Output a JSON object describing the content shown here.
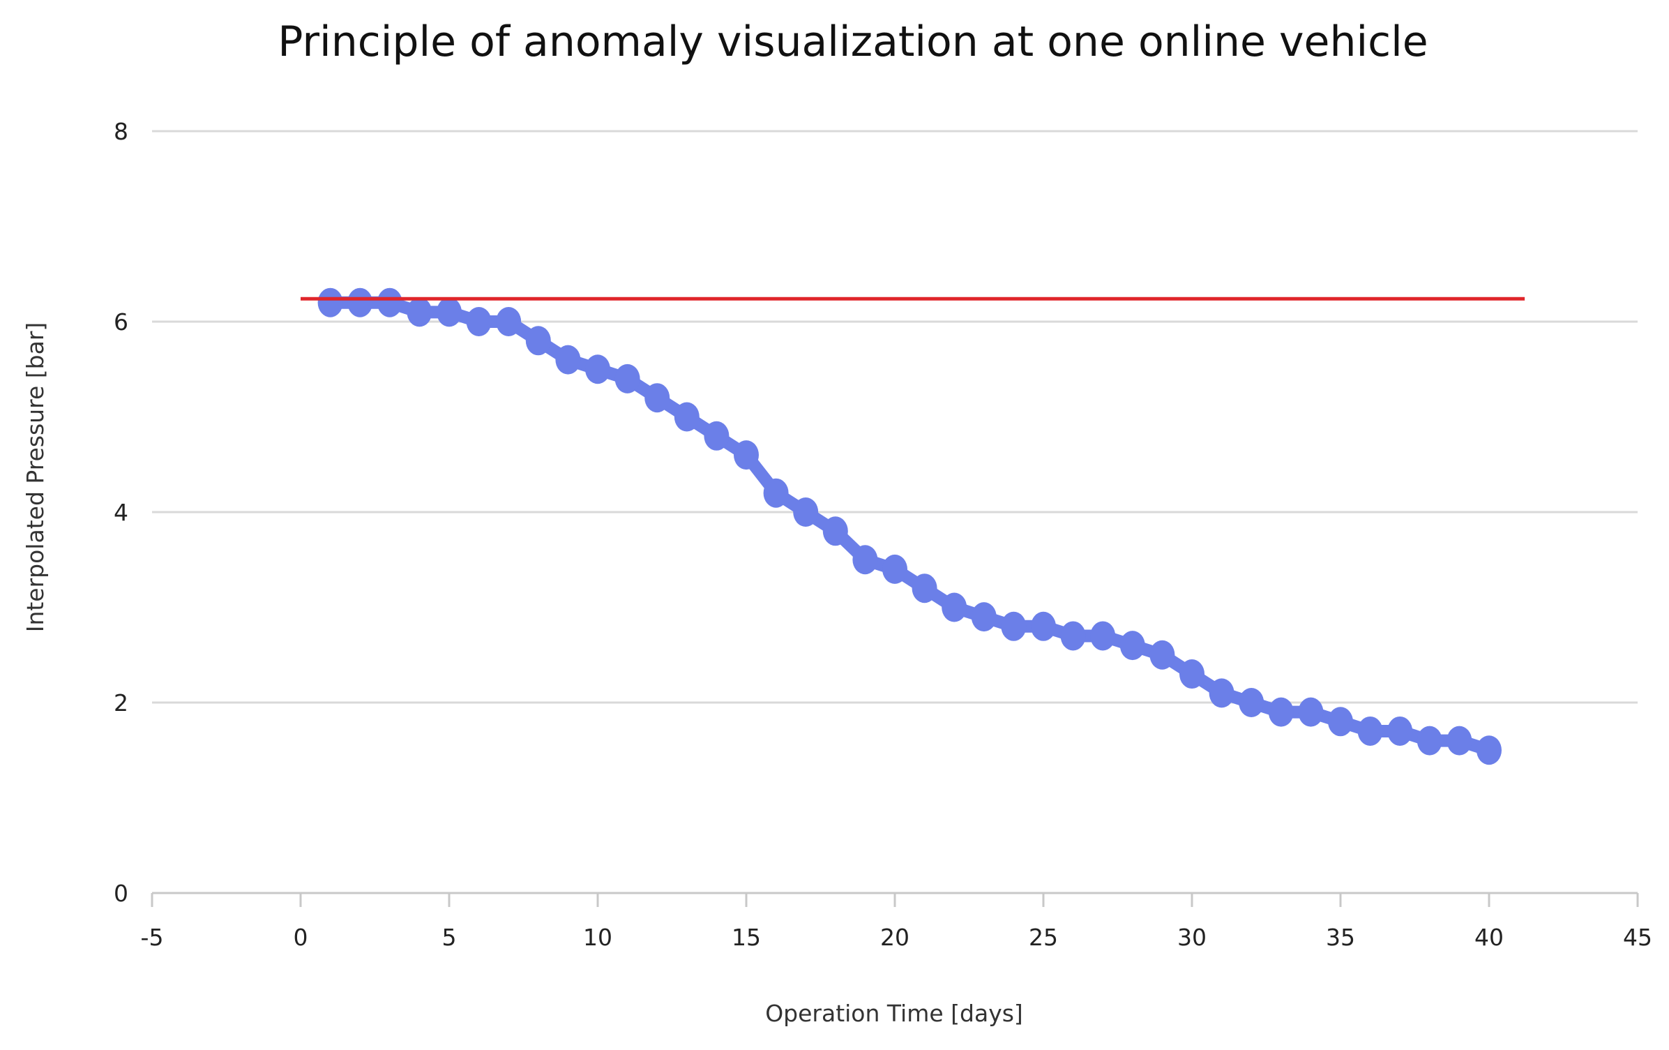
{
  "chart_data": {
    "type": "scatter",
    "title": "Principle of anomaly visualization at one online vehicle",
    "xlabel": "Operation Time [days]",
    "ylabel": "Interpolated Pressure [bar]",
    "xlim": [
      -5,
      45
    ],
    "ylim": [
      0,
      8
    ],
    "xticks": [
      -5,
      0,
      5,
      10,
      15,
      20,
      25,
      30,
      35,
      40,
      45
    ],
    "yticks": [
      0,
      2,
      4,
      6,
      8
    ],
    "grid": "horizontal",
    "legend": "none",
    "series": [
      {
        "color": "#6b7fe8",
        "style": "markers with connecting line",
        "x": [
          1,
          2,
          3,
          4,
          5,
          6,
          7,
          8,
          9,
          10,
          11,
          12,
          13,
          14,
          15,
          16,
          17,
          18,
          19,
          20,
          21,
          22,
          23,
          24,
          25,
          26,
          27,
          28,
          29,
          30,
          31,
          32,
          33,
          34,
          35,
          36,
          37,
          38,
          39,
          40
        ],
        "y": [
          6.2,
          6.2,
          6.2,
          6.1,
          6.1,
          6.0,
          6.0,
          5.8,
          5.6,
          5.5,
          5.4,
          5.2,
          5.0,
          4.8,
          4.6,
          4.2,
          4.0,
          3.8,
          3.5,
          3.4,
          3.2,
          3.0,
          2.9,
          2.8,
          2.8,
          2.7,
          2.7,
          2.6,
          2.5,
          2.3,
          2.1,
          2.0,
          1.9,
          1.9,
          1.8,
          1.7,
          1.7,
          1.6,
          1.6,
          1.5
        ]
      }
    ],
    "reference_lines": [
      {
        "color": "#e0262b",
        "x": [
          0,
          41.2
        ],
        "y": [
          6.24,
          6.24
        ]
      }
    ]
  }
}
